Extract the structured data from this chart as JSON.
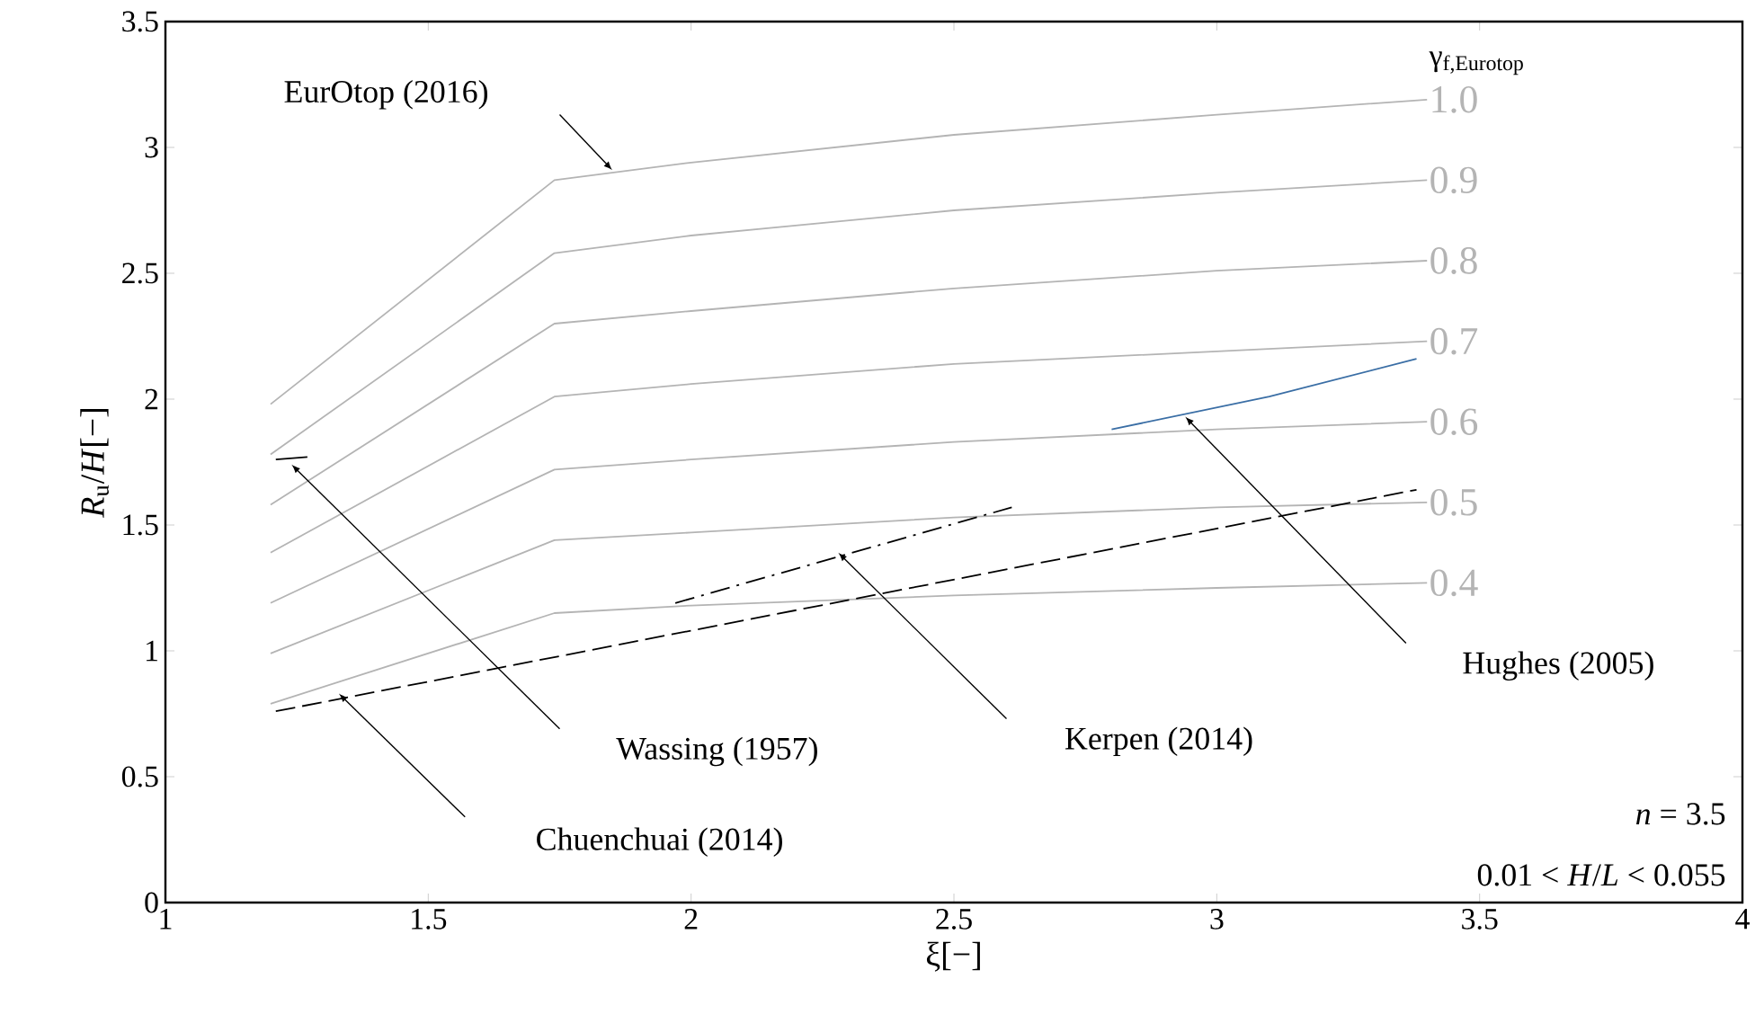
{
  "chart_data": {
    "type": "line",
    "xlabel": "ξ[−]",
    "ylabel": "*R*$_{u}$/*H*[−]",
    "legend_title": "γ$_{f,Eurotop}$",
    "xlim": [
      1,
      4
    ],
    "ylim": [
      0,
      3.5
    ],
    "xticks": [
      1,
      1.5,
      2,
      2.5,
      3,
      3.5,
      4
    ],
    "yticks": [
      0,
      0.5,
      1,
      1.5,
      2,
      2.5,
      3,
      3.5
    ],
    "series": [
      {
        "name": "1.0",
        "color": "#b4b4b4",
        "x": [
          1.2,
          1.74,
          2.0,
          2.5,
          3.0,
          3.4
        ],
        "values": [
          1.98,
          2.87,
          2.94,
          3.05,
          3.13,
          3.19
        ]
      },
      {
        "name": "0.9",
        "color": "#b4b4b4",
        "x": [
          1.2,
          1.74,
          2.0,
          2.5,
          3.0,
          3.4
        ],
        "values": [
          1.78,
          2.58,
          2.65,
          2.75,
          2.82,
          2.87
        ]
      },
      {
        "name": "0.8",
        "color": "#b4b4b4",
        "x": [
          1.2,
          1.74,
          2.0,
          2.5,
          3.0,
          3.4
        ],
        "values": [
          1.58,
          2.3,
          2.35,
          2.44,
          2.51,
          2.55
        ]
      },
      {
        "name": "0.7",
        "color": "#b4b4b4",
        "x": [
          1.2,
          1.74,
          2.0,
          2.5,
          3.0,
          3.4
        ],
        "values": [
          1.39,
          2.01,
          2.06,
          2.14,
          2.19,
          2.23
        ]
      },
      {
        "name": "0.6",
        "color": "#b4b4b4",
        "x": [
          1.2,
          1.74,
          2.0,
          2.5,
          3.0,
          3.4
        ],
        "values": [
          1.19,
          1.72,
          1.76,
          1.83,
          1.88,
          1.91
        ]
      },
      {
        "name": "0.5",
        "color": "#b4b4b4",
        "x": [
          1.2,
          1.74,
          2.0,
          2.5,
          3.0,
          3.4
        ],
        "values": [
          0.99,
          1.44,
          1.47,
          1.53,
          1.57,
          1.59
        ]
      },
      {
        "name": "0.4",
        "color": "#b4b4b4",
        "x": [
          1.2,
          1.74,
          2.0,
          2.5,
          3.0,
          3.4
        ],
        "values": [
          0.79,
          1.15,
          1.18,
          1.22,
          1.25,
          1.27
        ]
      },
      {
        "color": "#3a6ea5",
        "x": [
          2.8,
          3.1,
          3.38
        ],
        "values": [
          1.88,
          2.01,
          2.16
        ]
      },
      {
        "color": "#000000",
        "line_style": "dashed",
        "x": [
          1.21,
          3.38
        ],
        "values": [
          0.76,
          1.64
        ]
      },
      {
        "color": "#000000",
        "line_style": "dashdot",
        "x": [
          1.97,
          2.61
        ],
        "values": [
          1.19,
          1.57
        ]
      },
      {
        "color": "#000000",
        "x": [
          1.21,
          1.27
        ],
        "values": [
          1.76,
          1.77
        ]
      }
    ],
    "annotations": [
      "EurOtop (2016)",
      "Wassing (1957)",
      "Chuenchuai (2014)",
      "Kerpen (2014)",
      "Hughes (2005)",
      "*n* = 3.5",
      "0.01 < *H*/*L* < 0.055"
    ]
  }
}
